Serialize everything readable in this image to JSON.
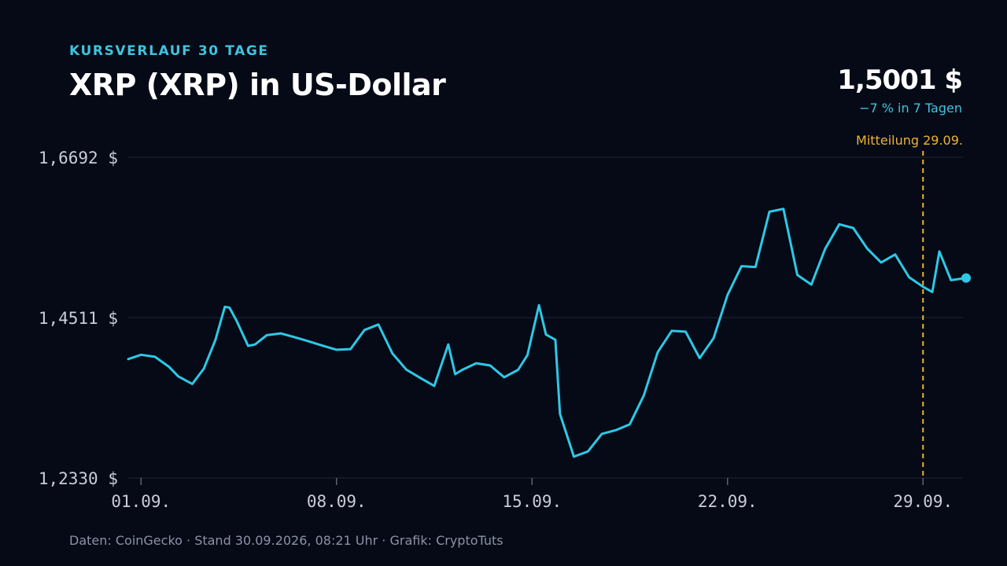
{
  "header": {
    "kicker": "KURSVERLAUF 30 TAGE",
    "title": "XRP (XRP) in US-Dollar",
    "price": "1,5001 $",
    "change": "−7 % in 7 Tagen"
  },
  "footer": {
    "source": "Daten: CoinGecko · Stand 30.09.2026, 08:21 Uhr · Grafik: CryptoTuts"
  },
  "colors": {
    "background": "#050a16",
    "line": "#2ec8e6",
    "accent": "#3fc3dd",
    "annotation": "#f0b232",
    "grid": "#1e2536"
  },
  "chart_data": {
    "type": "line",
    "title": "XRP (XRP) in US-Dollar",
    "xlabel": "",
    "ylabel": "",
    "grid": true,
    "legend": "none",
    "ylim": [
      1.233,
      1.6692
    ],
    "xlim": [
      "2026-08-31T13:00",
      "2026-09-30T13:00"
    ],
    "y_ticks": [
      {
        "value": 1.233,
        "label": "1,2330 $"
      },
      {
        "value": 1.4511,
        "label": "1,4511 $"
      },
      {
        "value": 1.6692,
        "label": "1,6692 $"
      }
    ],
    "x_ticks": [
      {
        "value": "2026-09-01",
        "label": "01.09."
      },
      {
        "value": "2026-09-08",
        "label": "08.09."
      },
      {
        "value": "2026-09-15",
        "label": "15.09."
      },
      {
        "value": "2026-09-22",
        "label": "22.09."
      },
      {
        "value": "2026-09-29",
        "label": "29.09."
      }
    ],
    "annotation": {
      "x": "2026-09-29",
      "label": "Mitteilung 29.09."
    },
    "series": [
      {
        "x": [
          "2026-08-31T13:00",
          "2026-09-01T00:00",
          "2026-09-01T12:00",
          "2026-09-02T00:00",
          "2026-09-02T08:00",
          "2026-09-02T20:00",
          "2026-09-03T06:00",
          "2026-09-03T16:00",
          "2026-09-04T00:00",
          "2026-09-04T04:00",
          "2026-09-04T10:00",
          "2026-09-04T20:00",
          "2026-09-05T02:00",
          "2026-09-05T12:00",
          "2026-09-06T00:00",
          "2026-09-06T12:00",
          "2026-09-07T00:00",
          "2026-09-07T12:00",
          "2026-09-08T00:00",
          "2026-09-08T12:00",
          "2026-09-09T00:00",
          "2026-09-09T12:00",
          "2026-09-10T00:00",
          "2026-09-10T12:00",
          "2026-09-11T00:00",
          "2026-09-11T12:00",
          "2026-09-12T00:00",
          "2026-09-12T06:00",
          "2026-09-12T12:00",
          "2026-09-13T00:00",
          "2026-09-13T12:00",
          "2026-09-14T00:00",
          "2026-09-14T12:00",
          "2026-09-14T20:00",
          "2026-09-15T06:00",
          "2026-09-15T12:00",
          "2026-09-15T20:00",
          "2026-09-16T00:00",
          "2026-09-16T12:00",
          "2026-09-17T00:00",
          "2026-09-17T12:00",
          "2026-09-18T00:00",
          "2026-09-18T12:00",
          "2026-09-19T00:00",
          "2026-09-19T12:00",
          "2026-09-20T00:00",
          "2026-09-20T12:00",
          "2026-09-21T00:00",
          "2026-09-21T12:00",
          "2026-09-22T00:00",
          "2026-09-22T12:00",
          "2026-09-23T00:00",
          "2026-09-23T12:00",
          "2026-09-24T00:00",
          "2026-09-24T12:00",
          "2026-09-25T00:00",
          "2026-09-25T12:00",
          "2026-09-26T00:00",
          "2026-09-26T12:00",
          "2026-09-27T00:00",
          "2026-09-27T12:00",
          "2026-09-28T00:00",
          "2026-09-28T12:00",
          "2026-09-29T00:00",
          "2026-09-29T08:00",
          "2026-09-29T14:00",
          "2026-09-30T00:00",
          "2026-09-30T13:00"
        ],
        "values": [
          1.3947,
          1.4005,
          1.3977,
          1.3842,
          1.3711,
          1.3609,
          1.3816,
          1.421,
          1.4657,
          1.4646,
          1.447,
          1.4126,
          1.4145,
          1.4271,
          1.4296,
          1.4245,
          1.4188,
          1.4129,
          1.4074,
          1.4082,
          1.4342,
          1.4417,
          1.4023,
          1.3803,
          1.369,
          1.3582,
          1.4145,
          1.3741,
          1.38,
          1.389,
          1.386,
          1.37,
          1.38,
          1.4,
          1.468,
          1.428,
          1.421,
          1.32,
          1.262,
          1.269,
          1.293,
          1.298,
          1.306,
          1.345,
          1.404,
          1.433,
          1.432,
          1.396,
          1.423,
          1.482,
          1.521,
          1.52,
          1.595,
          1.599,
          1.509,
          1.496,
          1.545,
          1.578,
          1.573,
          1.545,
          1.526,
          1.537,
          1.506,
          1.493,
          1.486,
          1.541,
          1.502,
          1.505
        ]
      }
    ]
  }
}
